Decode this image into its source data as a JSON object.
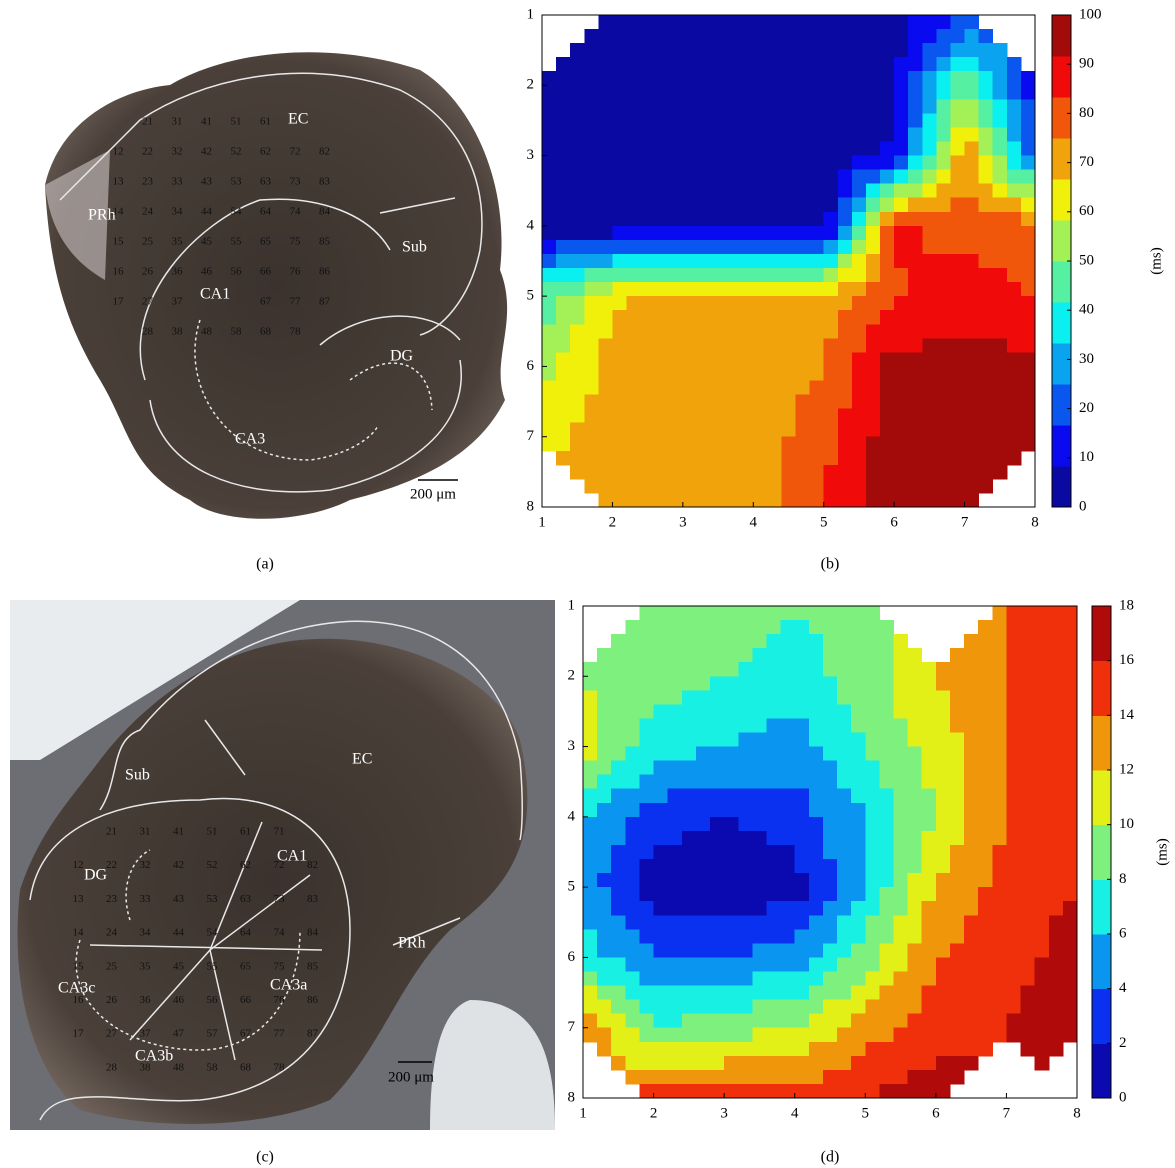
{
  "figure": {
    "a": {
      "panel_label": "(a)",
      "regions": [
        "EC",
        "PRh",
        "Sub",
        "CA1",
        "DG",
        "CA3"
      ],
      "scale_bar": "200 μm",
      "electrodes": [
        "21",
        "31",
        "41",
        "51",
        "61",
        "12",
        "22",
        "32",
        "42",
        "52",
        "62",
        "72",
        "82",
        "13",
        "23",
        "33",
        "43",
        "53",
        "63",
        "73",
        "83",
        "14",
        "24",
        "34",
        "44",
        "54",
        "64",
        "74",
        "84",
        "15",
        "25",
        "35",
        "45",
        "55",
        "65",
        "75",
        "85",
        "16",
        "26",
        "36",
        "46",
        "56",
        "66",
        "76",
        "86",
        "17",
        "27",
        "37",
        "67",
        "77",
        "87",
        "28",
        "38",
        "48",
        "58",
        "68",
        "78"
      ]
    },
    "c": {
      "panel_label": "(c)",
      "regions": [
        "Sub",
        "EC",
        "DG",
        "CA1",
        "PRh",
        "CA3c",
        "CA3a",
        "CA3b"
      ],
      "scale_bar": "200 μm",
      "electrodes": [
        "21",
        "31",
        "41",
        "51",
        "61",
        "71",
        "12",
        "22",
        "32",
        "42",
        "52",
        "62",
        "72",
        "82",
        "13",
        "23",
        "33",
        "43",
        "53",
        "63",
        "73",
        "83",
        "14",
        "24",
        "34",
        "44",
        "54",
        "64",
        "74",
        "84",
        "15",
        "25",
        "35",
        "45",
        "55",
        "65",
        "75",
        "85",
        "16",
        "26",
        "36",
        "46",
        "56",
        "66",
        "76",
        "86",
        "17",
        "27",
        "37",
        "47",
        "57",
        "67",
        "77",
        "87",
        "28",
        "38",
        "48",
        "58",
        "68",
        "78"
      ]
    }
  },
  "chart_data": [
    {
      "type": "contour",
      "panel_label": "(b)",
      "colorbar_label": "(ms)",
      "colormap": "jet",
      "n_levels": 12,
      "xlim": [
        1,
        8
      ],
      "ylim": [
        1,
        8
      ],
      "y_reversed": true,
      "xticks": [
        1,
        2,
        3,
        4,
        5,
        6,
        7,
        8
      ],
      "yticks": [
        1,
        2,
        3,
        4,
        5,
        6,
        7,
        8
      ],
      "clim": [
        0,
        100
      ],
      "cticks": [
        0,
        10,
        20,
        30,
        40,
        50,
        60,
        70,
        80,
        90,
        100
      ],
      "z": [
        [
          null,
          2,
          2,
          2,
          2,
          5,
          15,
          null
        ],
        [
          5,
          2,
          2,
          2,
          2,
          5,
          50,
          10
        ],
        [
          8,
          2,
          2,
          2,
          2,
          10,
          75,
          20
        ],
        [
          2,
          2,
          2,
          2,
          2,
          85,
          80,
          80
        ],
        [
          45,
          65,
          70,
          70,
          70,
          82,
          88,
          82
        ],
        [
          55,
          70,
          70,
          70,
          75,
          95,
          95,
          95
        ],
        [
          65,
          70,
          70,
          70,
          80,
          97,
          97,
          97
        ],
        [
          null,
          70,
          70,
          70,
          85,
          98,
          98,
          null
        ]
      ]
    },
    {
      "type": "contour",
      "panel_label": "(d)",
      "colorbar_label": "(ms)",
      "colormap": "jet",
      "n_levels": 9,
      "xlim": [
        1,
        8
      ],
      "ylim": [
        1,
        8
      ],
      "y_reversed": true,
      "xticks": [
        1,
        2,
        3,
        4,
        5,
        6,
        7,
        8
      ],
      "yticks": [
        1,
        2,
        3,
        4,
        5,
        6,
        7,
        8
      ],
      "clim": [
        0,
        18
      ],
      "cticks": [
        0,
        2,
        4,
        6,
        8,
        10,
        12,
        14,
        16,
        18
      ],
      "z": [
        [
          null,
          9,
          9,
          8,
          9,
          null,
          14,
          16
        ],
        [
          10,
          9,
          8,
          7,
          9,
          12,
          14,
          16
        ],
        [
          11,
          7,
          6,
          5,
          8,
          11,
          14,
          16
        ],
        [
          6,
          3,
          2,
          3,
          6,
          10,
          14,
          16
        ],
        [
          5,
          1,
          0.5,
          1,
          6,
          12,
          15,
          16
        ],
        [
          7,
          4,
          4,
          5,
          9,
          14,
          15,
          17
        ],
        [
          14,
          8,
          9,
          10,
          13,
          15,
          16,
          18
        ],
        [
          null,
          15,
          15,
          15,
          16,
          17,
          null,
          null
        ]
      ]
    }
  ]
}
